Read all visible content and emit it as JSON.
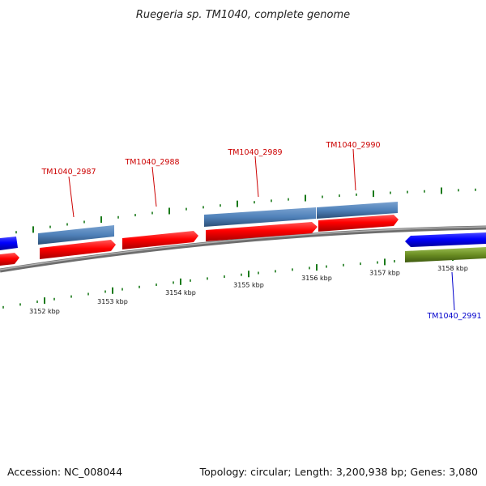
{
  "title": "Ruegeria sp. TM1040, complete genome",
  "footer": {
    "accession": "Accession: NC_008044",
    "summary": "Topology: circular; Length: 3,200,938 bp; Genes: 3,080"
  },
  "colors": {
    "backbone": "#8c8c8c",
    "forward_cds": "#ff0000",
    "reverse_cds": "#0000ff",
    "gene_blue": "#4f81b9",
    "gene_green": "#6b8e23",
    "ticks": "#1a7a1a",
    "label_red": "#cc0000",
    "label_blue": "#0000cc"
  },
  "scale": {
    "tick_labels": [
      {
        "kbp": 3152,
        "text": "3152 kbp"
      },
      {
        "kbp": 3153,
        "text": "3153 kbp"
      },
      {
        "kbp": 3154,
        "text": "3154 kbp"
      },
      {
        "kbp": 3155,
        "text": "3155 kbp"
      },
      {
        "kbp": 3156,
        "text": "3156 kbp"
      },
      {
        "kbp": 3157,
        "text": "3157 kbp"
      },
      {
        "kbp": 3158,
        "text": "3158 kbp"
      }
    ]
  },
  "genes": [
    {
      "locus": "TM1040_2987",
      "label": "TM1040_2987",
      "start_kbp": 3152.25,
      "end_kbp": 3153.3,
      "strand": "+",
      "track": "outer",
      "color": "#4f81b9",
      "labeled": true
    },
    {
      "locus": "TM1040_2988",
      "label": "TM1040_2988",
      "start_kbp": 3153.4,
      "end_kbp": 3154.4,
      "strand": "+",
      "track": "outer",
      "color": "#4f81b9",
      "labeled": true
    },
    {
      "locus": "TM1040_2989",
      "label": "TM1040_2989",
      "start_kbp": 3154.4,
      "end_kbp": 3156.0,
      "strand": "+",
      "track": "outer",
      "color": "#4f81b9",
      "labeled": true
    },
    {
      "locus": "TM1040_2990",
      "label": "TM1040_2990",
      "start_kbp": 3156.0,
      "end_kbp": 3157.2,
      "strand": "+",
      "track": "outer",
      "color": "#4f81b9",
      "labeled": true
    },
    {
      "locus": "TM1040_2991",
      "label": "TM1040_2991",
      "start_kbp": 3157.6,
      "end_kbp": 3158.9,
      "strand": "-",
      "track": "inner",
      "color": "#6b8e23",
      "labeled": true
    }
  ]
}
